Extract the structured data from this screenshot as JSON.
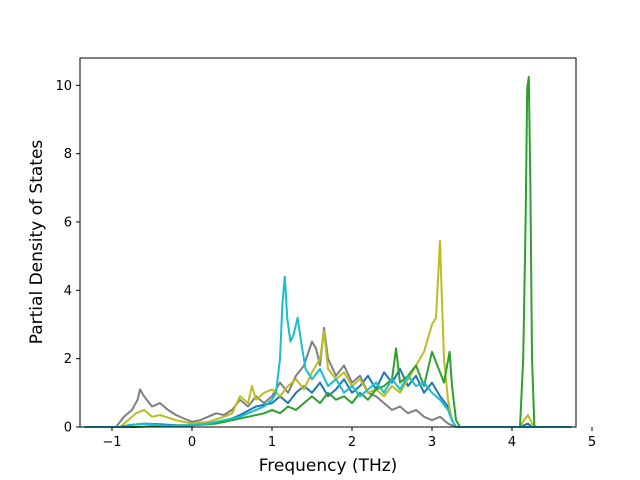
{
  "chart_data": {
    "type": "line",
    "title": "",
    "xlabel": "Frequency (THz)",
    "ylabel": "Partial Density of States",
    "xlim": [
      -1.4,
      4.8
    ],
    "ylim": [
      0,
      10.8
    ],
    "xticks": [
      -1,
      0,
      1,
      2,
      3,
      4,
      5
    ],
    "xtick_labels": [
      "−1",
      "0",
      "1",
      "2",
      "3",
      "4",
      "5"
    ],
    "yticks": [
      0,
      2,
      4,
      6,
      8,
      10
    ],
    "ytick_labels": [
      "0",
      "2",
      "4",
      "6",
      "8",
      "10"
    ],
    "grid": false,
    "legend": "none",
    "series": [
      {
        "color": "#1f77b4",
        "points": [
          [
            -1.35,
            0
          ],
          [
            -0.9,
            0
          ],
          [
            -0.8,
            0.05
          ],
          [
            -0.6,
            0.1
          ],
          [
            -0.4,
            0.08
          ],
          [
            -0.2,
            0.05
          ],
          [
            0,
            0.05
          ],
          [
            0.2,
            0.08
          ],
          [
            0.4,
            0.15
          ],
          [
            0.6,
            0.35
          ],
          [
            0.8,
            0.6
          ],
          [
            1.0,
            0.7
          ],
          [
            1.1,
            0.9
          ],
          [
            1.2,
            0.7
          ],
          [
            1.3,
            1.0
          ],
          [
            1.4,
            1.2
          ],
          [
            1.5,
            1.0
          ],
          [
            1.6,
            1.3
          ],
          [
            1.7,
            0.9
          ],
          [
            1.8,
            1.1
          ],
          [
            1.9,
            1.4
          ],
          [
            2.0,
            1.0
          ],
          [
            2.1,
            1.2
          ],
          [
            2.2,
            1.5
          ],
          [
            2.3,
            1.1
          ],
          [
            2.4,
            1.6
          ],
          [
            2.5,
            1.3
          ],
          [
            2.6,
            1.7
          ],
          [
            2.7,
            1.2
          ],
          [
            2.8,
            1.5
          ],
          [
            2.9,
            1.0
          ],
          [
            3.0,
            1.3
          ],
          [
            3.1,
            0.9
          ],
          [
            3.2,
            0.6
          ],
          [
            3.25,
            0.2
          ],
          [
            3.3,
            0
          ],
          [
            4.1,
            0
          ],
          [
            4.15,
            0.05
          ],
          [
            4.2,
            0.1
          ],
          [
            4.25,
            0
          ],
          [
            4.75,
            0
          ]
        ]
      },
      {
        "color": "#7f7f7f",
        "points": [
          [
            -1.35,
            0
          ],
          [
            -0.95,
            0
          ],
          [
            -0.85,
            0.3
          ],
          [
            -0.75,
            0.5
          ],
          [
            -0.68,
            0.8
          ],
          [
            -0.65,
            1.1
          ],
          [
            -0.6,
            0.9
          ],
          [
            -0.5,
            0.6
          ],
          [
            -0.4,
            0.7
          ],
          [
            -0.3,
            0.5
          ],
          [
            -0.2,
            0.35
          ],
          [
            -0.1,
            0.25
          ],
          [
            0,
            0.15
          ],
          [
            0.1,
            0.2
          ],
          [
            0.2,
            0.3
          ],
          [
            0.3,
            0.4
          ],
          [
            0.4,
            0.35
          ],
          [
            0.5,
            0.5
          ],
          [
            0.6,
            0.8
          ],
          [
            0.7,
            0.6
          ],
          [
            0.8,
            0.9
          ],
          [
            0.9,
            0.7
          ],
          [
            1.0,
            0.9
          ],
          [
            1.1,
            1.3
          ],
          [
            1.2,
            1.0
          ],
          [
            1.3,
            1.5
          ],
          [
            1.4,
            1.8
          ],
          [
            1.5,
            2.5
          ],
          [
            1.55,
            2.3
          ],
          [
            1.6,
            1.8
          ],
          [
            1.65,
            2.9
          ],
          [
            1.7,
            2.0
          ],
          [
            1.8,
            1.5
          ],
          [
            1.9,
            1.8
          ],
          [
            2.0,
            1.3
          ],
          [
            2.1,
            1.5
          ],
          [
            2.2,
            1.0
          ],
          [
            2.3,
            0.9
          ],
          [
            2.4,
            0.7
          ],
          [
            2.5,
            0.5
          ],
          [
            2.6,
            0.6
          ],
          [
            2.7,
            0.4
          ],
          [
            2.8,
            0.5
          ],
          [
            2.9,
            0.3
          ],
          [
            3.0,
            0.2
          ],
          [
            3.1,
            0.3
          ],
          [
            3.2,
            0.1
          ],
          [
            3.3,
            0
          ],
          [
            4.1,
            0
          ],
          [
            4.75,
            0
          ]
        ]
      },
      {
        "color": "#bcbd22",
        "points": [
          [
            -1.35,
            0
          ],
          [
            -0.9,
            0
          ],
          [
            -0.8,
            0.2
          ],
          [
            -0.7,
            0.4
          ],
          [
            -0.6,
            0.5
          ],
          [
            -0.5,
            0.3
          ],
          [
            -0.4,
            0.35
          ],
          [
            -0.2,
            0.2
          ],
          [
            0,
            0.1
          ],
          [
            0.2,
            0.15
          ],
          [
            0.4,
            0.3
          ],
          [
            0.5,
            0.4
          ],
          [
            0.6,
            0.9
          ],
          [
            0.7,
            0.7
          ],
          [
            0.75,
            1.2
          ],
          [
            0.8,
            0.8
          ],
          [
            0.9,
            1.0
          ],
          [
            1.0,
            1.1
          ],
          [
            1.1,
            0.9
          ],
          [
            1.2,
            1.2
          ],
          [
            1.3,
            1.4
          ],
          [
            1.4,
            1.1
          ],
          [
            1.5,
            1.6
          ],
          [
            1.6,
            2.0
          ],
          [
            1.65,
            2.8
          ],
          [
            1.7,
            1.7
          ],
          [
            1.8,
            1.4
          ],
          [
            1.9,
            1.6
          ],
          [
            2.0,
            1.2
          ],
          [
            2.1,
            1.4
          ],
          [
            2.2,
            1.0
          ],
          [
            2.3,
            1.1
          ],
          [
            2.4,
            0.9
          ],
          [
            2.5,
            1.2
          ],
          [
            2.6,
            1.0
          ],
          [
            2.7,
            1.4
          ],
          [
            2.8,
            1.8
          ],
          [
            2.9,
            2.2
          ],
          [
            3.0,
            3.0
          ],
          [
            3.05,
            3.2
          ],
          [
            3.1,
            5.45
          ],
          [
            3.12,
            4.0
          ],
          [
            3.15,
            2.0
          ],
          [
            3.2,
            0.8
          ],
          [
            3.25,
            0.2
          ],
          [
            3.3,
            0
          ],
          [
            4.1,
            0
          ],
          [
            4.15,
            0.2
          ],
          [
            4.2,
            0.35
          ],
          [
            4.25,
            0.1
          ],
          [
            4.3,
            0
          ],
          [
            4.75,
            0
          ]
        ]
      },
      {
        "color": "#2ca02c",
        "points": [
          [
            -1.35,
            0
          ],
          [
            -0.7,
            0
          ],
          [
            -0.5,
            0.02
          ],
          [
            0,
            0.05
          ],
          [
            0.3,
            0.1
          ],
          [
            0.5,
            0.2
          ],
          [
            0.7,
            0.3
          ],
          [
            0.9,
            0.4
          ],
          [
            1.0,
            0.5
          ],
          [
            1.1,
            0.4
          ],
          [
            1.2,
            0.6
          ],
          [
            1.3,
            0.5
          ],
          [
            1.4,
            0.7
          ],
          [
            1.5,
            0.9
          ],
          [
            1.6,
            0.7
          ],
          [
            1.7,
            1.0
          ],
          [
            1.8,
            0.8
          ],
          [
            1.9,
            0.9
          ],
          [
            2.0,
            0.7
          ],
          [
            2.1,
            1.0
          ],
          [
            2.2,
            0.8
          ],
          [
            2.3,
            1.1
          ],
          [
            2.4,
            1.2
          ],
          [
            2.5,
            1.4
          ],
          [
            2.55,
            2.3
          ],
          [
            2.6,
            1.3
          ],
          [
            2.7,
            1.5
          ],
          [
            2.8,
            1.8
          ],
          [
            2.9,
            1.2
          ],
          [
            3.0,
            2.2
          ],
          [
            3.05,
            1.9
          ],
          [
            3.1,
            1.6
          ],
          [
            3.15,
            1.3
          ],
          [
            3.22,
            2.2
          ],
          [
            3.25,
            1.2
          ],
          [
            3.3,
            0.2
          ],
          [
            3.35,
            0
          ],
          [
            4.1,
            0
          ],
          [
            4.14,
            2.0
          ],
          [
            4.17,
            6.0
          ],
          [
            4.19,
            9.9
          ],
          [
            4.21,
            10.25
          ],
          [
            4.23,
            7.0
          ],
          [
            4.25,
            2.0
          ],
          [
            4.28,
            0
          ],
          [
            4.75,
            0
          ]
        ]
      },
      {
        "color": "#17becf",
        "points": [
          [
            -1.35,
            0
          ],
          [
            -0.9,
            0
          ],
          [
            -0.8,
            0.05
          ],
          [
            -0.6,
            0.1
          ],
          [
            -0.4,
            0.05
          ],
          [
            -0.2,
            0.03
          ],
          [
            0,
            0.05
          ],
          [
            0.2,
            0.1
          ],
          [
            0.4,
            0.2
          ],
          [
            0.6,
            0.3
          ],
          [
            0.8,
            0.5
          ],
          [
            0.9,
            0.6
          ],
          [
            1.0,
            0.8
          ],
          [
            1.05,
            1.0
          ],
          [
            1.1,
            2.0
          ],
          [
            1.13,
            3.6
          ],
          [
            1.16,
            4.4
          ],
          [
            1.19,
            3.2
          ],
          [
            1.23,
            2.5
          ],
          [
            1.27,
            2.7
          ],
          [
            1.32,
            3.2
          ],
          [
            1.37,
            2.4
          ],
          [
            1.42,
            1.7
          ],
          [
            1.5,
            1.4
          ],
          [
            1.6,
            1.7
          ],
          [
            1.7,
            1.2
          ],
          [
            1.8,
            1.4
          ],
          [
            1.9,
            1.0
          ],
          [
            2.0,
            1.2
          ],
          [
            2.1,
            0.9
          ],
          [
            2.2,
            1.1
          ],
          [
            2.3,
            1.3
          ],
          [
            2.4,
            1.0
          ],
          [
            2.5,
            1.4
          ],
          [
            2.6,
            1.1
          ],
          [
            2.7,
            1.5
          ],
          [
            2.8,
            1.2
          ],
          [
            2.9,
            1.3
          ],
          [
            3.0,
            1.0
          ],
          [
            3.1,
            0.8
          ],
          [
            3.2,
            0.5
          ],
          [
            3.25,
            0.2
          ],
          [
            3.3,
            0
          ],
          [
            4.1,
            0
          ],
          [
            4.75,
            0
          ]
        ]
      }
    ]
  }
}
